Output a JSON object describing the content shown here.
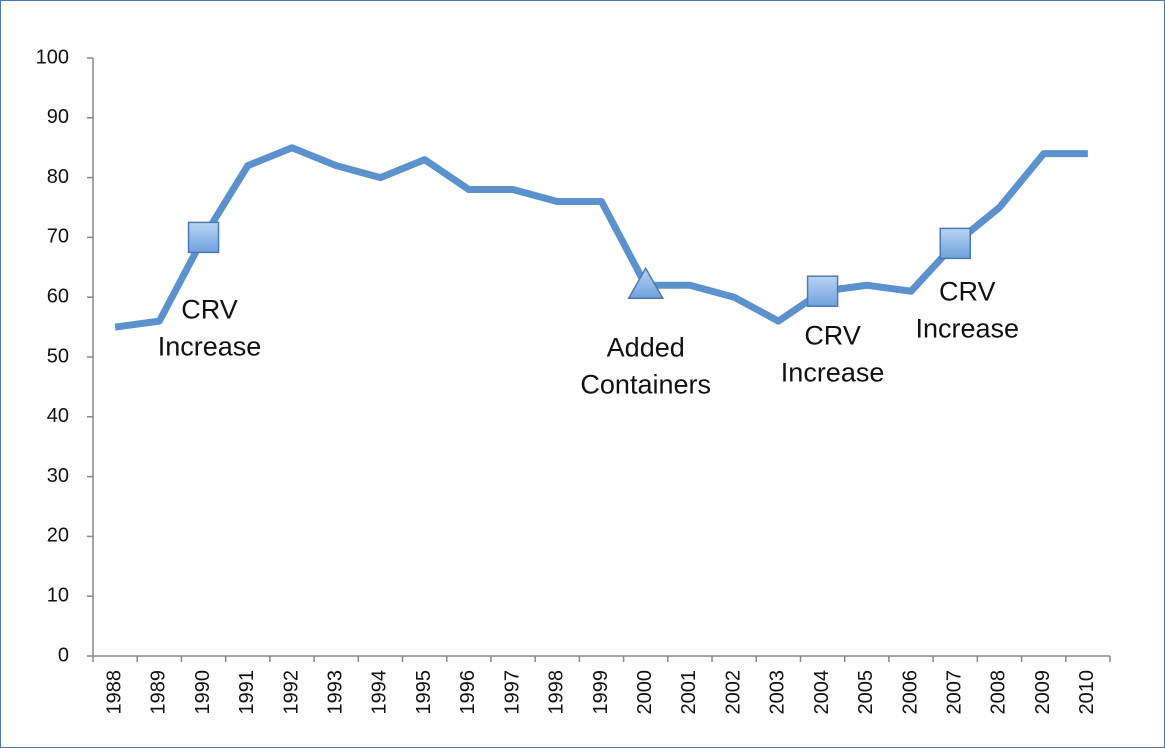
{
  "chart_data": {
    "type": "line",
    "categories": [
      "1988",
      "1989",
      "1990",
      "1991",
      "1992",
      "1993",
      "1994",
      "1995",
      "1996",
      "1997",
      "1998",
      "1999",
      "2000",
      "2001",
      "2002",
      "2003",
      "2004",
      "2005",
      "2006",
      "2007",
      "2008",
      "2009",
      "2010"
    ],
    "values": [
      55,
      56,
      70,
      82,
      85,
      82,
      80,
      83,
      78,
      78,
      76,
      76,
      62,
      62,
      60,
      56,
      61,
      62,
      61,
      69,
      75,
      84,
      84
    ],
    "color": "#5b92cd",
    "ylim": [
      0,
      100
    ],
    "yticks": [
      0,
      10,
      20,
      30,
      40,
      50,
      60,
      70,
      80,
      90,
      100
    ],
    "grid": false,
    "annotations": [
      {
        "x": "1990",
        "marker": "square",
        "lines": [
          "CRV",
          "Increase"
        ]
      },
      {
        "x": "2000",
        "marker": "triangle",
        "lines": [
          "Added",
          "Containers"
        ]
      },
      {
        "x": "2004",
        "marker": "square",
        "lines": [
          "CRV",
          "Increase"
        ]
      },
      {
        "x": "2007",
        "marker": "square",
        "lines": [
          "CRV",
          "Increase"
        ]
      }
    ]
  }
}
